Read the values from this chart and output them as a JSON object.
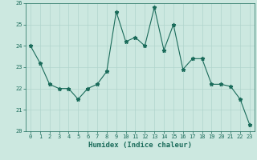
{
  "x": [
    0,
    1,
    2,
    3,
    4,
    5,
    6,
    7,
    8,
    9,
    10,
    11,
    12,
    13,
    14,
    15,
    16,
    17,
    18,
    19,
    20,
    21,
    22,
    23
  ],
  "y": [
    24.0,
    23.2,
    22.2,
    22.0,
    22.0,
    21.5,
    22.0,
    22.2,
    22.8,
    25.6,
    24.2,
    24.4,
    24.0,
    25.8,
    23.8,
    25.0,
    22.9,
    23.4,
    23.4,
    22.2,
    22.2,
    22.1,
    21.5,
    20.3
  ],
  "line_color": "#1a6b5a",
  "marker": "*",
  "markersize": 3.5,
  "linewidth": 0.8,
  "bg_color": "#cce8e0",
  "grid_color": "#b0d4cc",
  "xlabel": "Humidex (Indice chaleur)",
  "ylim": [
    20,
    26
  ],
  "yticks": [
    20,
    21,
    22,
    23,
    24,
    25,
    26
  ],
  "xticks": [
    0,
    1,
    2,
    3,
    4,
    5,
    6,
    7,
    8,
    9,
    10,
    11,
    12,
    13,
    14,
    15,
    16,
    17,
    18,
    19,
    20,
    21,
    22,
    23
  ],
  "tick_fontsize": 5.0,
  "xlabel_fontsize": 6.5,
  "tick_color": "#1a6b5a",
  "axis_color": "#1a6b5a"
}
